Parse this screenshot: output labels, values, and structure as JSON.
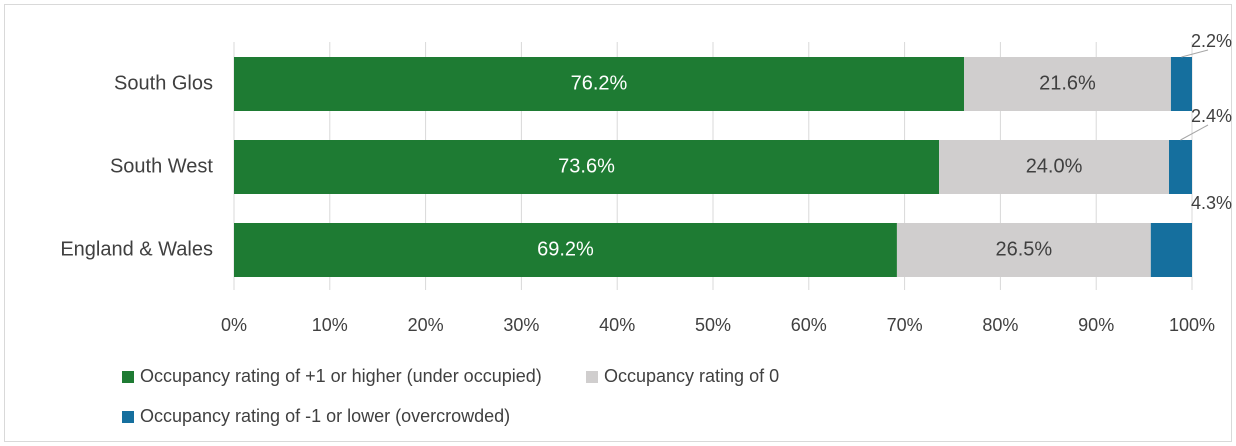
{
  "chart_data": {
    "type": "stacked_bar_horizontal",
    "categories": [
      "South Glos",
      "South West",
      "England & Wales"
    ],
    "series": [
      {
        "name": "Occupancy rating of +1 or higher (under occupied)",
        "color": "#1e7b33",
        "values": [
          76.2,
          73.6,
          69.2
        ],
        "value_labels": [
          "76.2%",
          "73.6%",
          "69.2%"
        ]
      },
      {
        "name": "Occupancy rating of 0",
        "color": "#d0cece",
        "values": [
          21.6,
          24.0,
          26.5
        ],
        "value_labels": [
          "21.6%",
          "24.0%",
          "26.5%"
        ]
      },
      {
        "name": "Occupancy rating of -1 or lower (overcrowded)",
        "color": "#156f9e",
        "values": [
          2.2,
          2.4,
          4.3
        ],
        "value_labels": [
          "2.2%",
          "2.4%",
          "4.3%"
        ]
      }
    ],
    "xlim": [
      0,
      100
    ],
    "xticks": [
      {
        "value": 0,
        "label": "0%"
      },
      {
        "value": 10,
        "label": "10%"
      },
      {
        "value": 20,
        "label": "20%"
      },
      {
        "value": 30,
        "label": "30%"
      },
      {
        "value": 40,
        "label": "40%"
      },
      {
        "value": 50,
        "label": "50%"
      },
      {
        "value": 60,
        "label": "60%"
      },
      {
        "value": 70,
        "label": "70%"
      },
      {
        "value": 80,
        "label": "80%"
      },
      {
        "value": 90,
        "label": "90%"
      },
      {
        "value": 100,
        "label": "100%"
      }
    ],
    "grid": true
  }
}
